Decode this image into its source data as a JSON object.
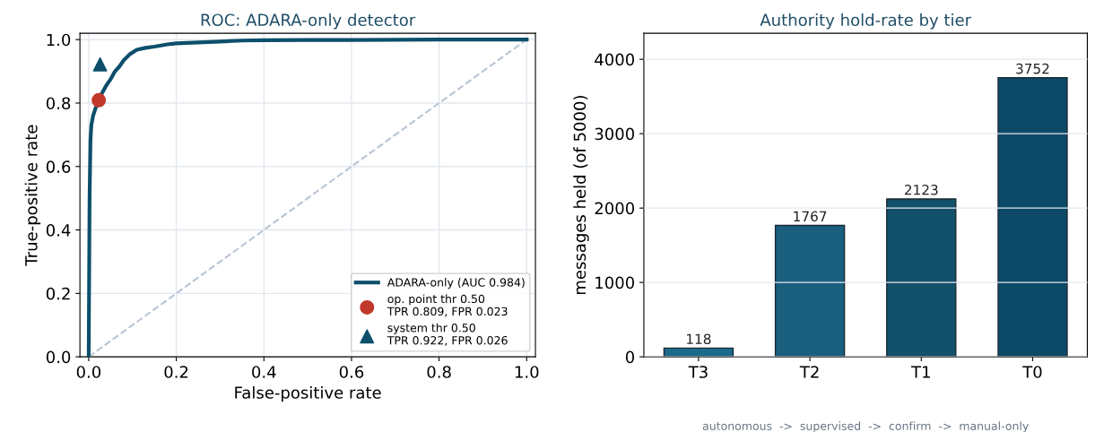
{
  "chart_data": [
    {
      "type": "line",
      "title": "ROC: ADARA-only detector",
      "xlabel": "False-positive rate",
      "ylabel": "True-positive rate",
      "xlim": [
        -0.02,
        1.02
      ],
      "ylim": [
        0,
        1.02
      ],
      "xticks": [
        {
          "value": 0,
          "label": "0.0"
        },
        0.2,
        0.4,
        0.6,
        0.8,
        {
          "value": 1,
          "label": "1.0"
        }
      ],
      "yticks": [
        {
          "value": 0,
          "label": "0.0"
        },
        0.2,
        0.4,
        0.6,
        0.8,
        {
          "value": 1,
          "label": "1.0"
        }
      ],
      "grid": true,
      "legend": "bottom right",
      "series": [
        {
          "type": "line",
          "color": "#b8c4d4",
          "line_style": "dashed",
          "x": [
            0,
            1
          ],
          "values": [
            0,
            1
          ]
        },
        {
          "type": "line",
          "name": "ADARA-only (AUC 0.984)",
          "color": "#0d4f6b",
          "line_style": "solid",
          "x": [
            0,
            0.002,
            0.004,
            0.006,
            0.01,
            0.016,
            0.03,
            0.04,
            0.05,
            0.06,
            0.07,
            0.08,
            0.095,
            0.11,
            0.13,
            0.15,
            0.18,
            0.2,
            0.25,
            0.3,
            0.35,
            0.4,
            0.5,
            0.6,
            0.8,
            1.0
          ],
          "values": [
            0,
            0.5,
            0.68,
            0.73,
            0.76,
            0.785,
            0.83,
            0.855,
            0.875,
            0.9,
            0.915,
            0.935,
            0.955,
            0.968,
            0.974,
            0.978,
            0.985,
            0.988,
            0.991,
            0.994,
            0.997,
            0.998,
            0.999,
            0.999,
            1.0,
            1.0
          ]
        },
        {
          "type": "scatter",
          "name": "op. point thr 0.50\nTPR 0.809, FPR 0.023",
          "color": "#c0392b",
          "marker": "circle",
          "x": [
            0.023
          ],
          "values": [
            0.809
          ]
        },
        {
          "type": "scatter",
          "name": "system thr 0.50\nTPR 0.922, FPR 0.026",
          "color": "#0d4f6b",
          "marker": "triangle",
          "x": [
            0.026
          ],
          "values": [
            0.922
          ]
        }
      ]
    },
    {
      "type": "bar",
      "title": "Authority hold-rate by tier",
      "ylabel": "messages held (of 5000)",
      "categories": [
        "T3",
        "T2",
        "T1",
        "T0"
      ],
      "values": [
        118,
        1767,
        2123,
        3752
      ],
      "colors": [
        "#1c6a8a",
        "#1a5f7e",
        "#13506a",
        "#0d4a68"
      ],
      "ylim": [
        0,
        4350
      ],
      "yticks": [
        0,
        1000,
        2000,
        3000,
        4000
      ],
      "grid": "y",
      "data_labels": true,
      "annotations": [
        "autonomous  ->  supervised  ->  confirm  ->  manual-only"
      ]
    }
  ]
}
